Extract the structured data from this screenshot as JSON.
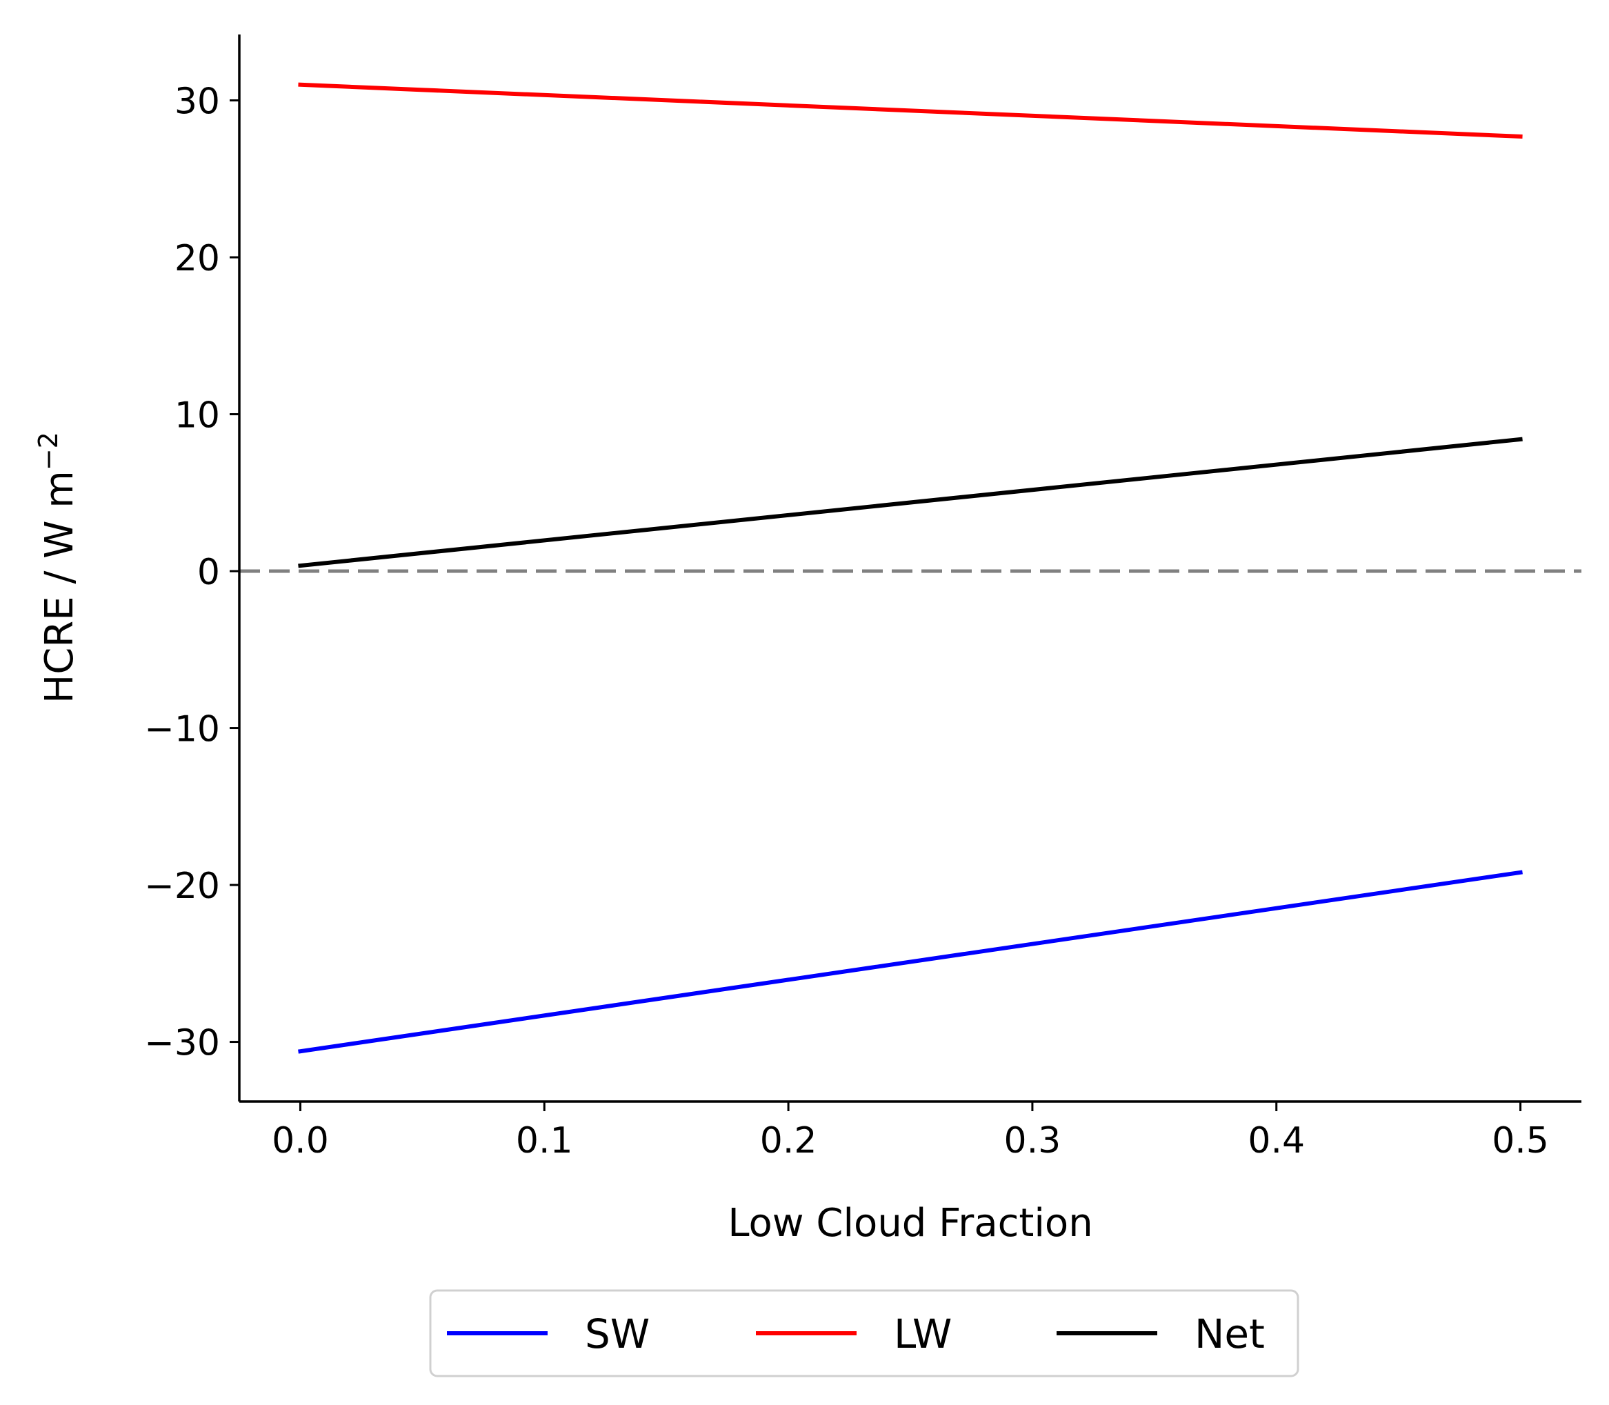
{
  "chart_data": {
    "type": "line",
    "title": "",
    "xlabel": "Low Cloud Fraction",
    "ylabel_main": "HCRE / W m",
    "ylabel_sup": "−2",
    "xlim": [
      -0.025,
      0.525
    ],
    "ylim": [
      -33.8,
      34.2
    ],
    "xticks": [
      0.0,
      0.1,
      0.2,
      0.3,
      0.4,
      0.5
    ],
    "xtick_labels": [
      "0.0",
      "0.1",
      "0.2",
      "0.3",
      "0.4",
      "0.5"
    ],
    "yticks": [
      -30,
      -20,
      -10,
      0,
      10,
      20,
      30
    ],
    "ytick_labels": [
      "−30",
      "−20",
      "−10",
      "0",
      "10",
      "20",
      "30"
    ],
    "reference_line": {
      "y": 0,
      "style": "dashed",
      "color": "#808080"
    },
    "legend_position": "bottom-center",
    "series": [
      {
        "name": "SW",
        "color": "#0000ff",
        "x": [
          0.0,
          0.5
        ],
        "y": [
          -30.6,
          -19.2
        ]
      },
      {
        "name": "LW",
        "color": "#ff0000",
        "x": [
          0.0,
          0.5
        ],
        "y": [
          31.0,
          27.7
        ]
      },
      {
        "name": "Net",
        "color": "#000000",
        "x": [
          0.0,
          0.5
        ],
        "y": [
          0.35,
          8.4
        ]
      }
    ]
  }
}
